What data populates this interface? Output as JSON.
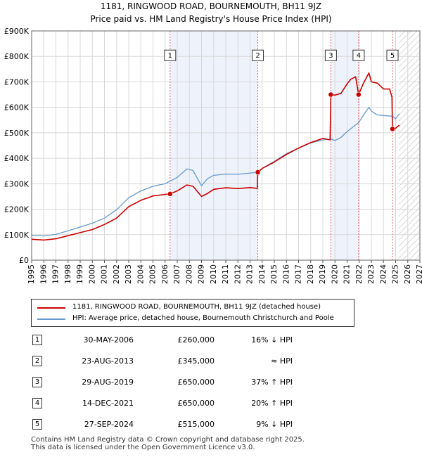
{
  "title_line1": "1181, RINGWOOD ROAD, BOURNEMOUTH, BH11 9JZ",
  "title_line2": "Price paid vs. HM Land Registry's House Price Index (HPI)",
  "colors": {
    "property": "#cc0000",
    "hpi": "#6699cc",
    "shade": "#eef2fb",
    "marker_line": "#e06060"
  },
  "chart_data": {
    "type": "line",
    "x_ticks": [
      1995,
      1996,
      1997,
      1998,
      1999,
      2000,
      2001,
      2002,
      2003,
      2004,
      2005,
      2006,
      2007,
      2008,
      2009,
      2010,
      2011,
      2012,
      2013,
      2014,
      2015,
      2016,
      2017,
      2018,
      2019,
      2020,
      2021,
      2022,
      2023,
      2024,
      2025,
      2026,
      2027
    ],
    "y_ticks": [
      0,
      100000,
      200000,
      300000,
      400000,
      500000,
      600000,
      700000,
      800000,
      900000
    ],
    "y_tick_labels": [
      "£0",
      "£100K",
      "£200K",
      "£300K",
      "£400K",
      "£500K",
      "£600K",
      "£700K",
      "£800K",
      "£900K"
    ],
    "xlim": [
      1995,
      2027
    ],
    "ylim": [
      0,
      900000
    ],
    "shaded_periods": [
      [
        2006.41,
        2013.64
      ],
      [
        2019.66,
        2021.95
      ]
    ],
    "hatch_from": 2025.25,
    "series": [
      {
        "name": "1181, RINGWOOD ROAD, BOURNEMOUTH, BH11 9JZ (detached house)",
        "points": [
          [
            1995.0,
            82000
          ],
          [
            1996.0,
            79000
          ],
          [
            1997.0,
            84000
          ],
          [
            1998.0,
            96000
          ],
          [
            1999.0,
            108000
          ],
          [
            2000.0,
            120000
          ],
          [
            2001.0,
            140000
          ],
          [
            2002.0,
            165000
          ],
          [
            2003.0,
            210000
          ],
          [
            2004.0,
            235000
          ],
          [
            2005.0,
            252000
          ],
          [
            2006.0,
            258000
          ],
          [
            2006.41,
            260000
          ],
          [
            2007.0,
            272000
          ],
          [
            2007.8,
            295000
          ],
          [
            2008.3,
            290000
          ],
          [
            2009.0,
            250000
          ],
          [
            2009.5,
            262000
          ],
          [
            2010.0,
            278000
          ],
          [
            2011.0,
            284000
          ],
          [
            2012.0,
            281000
          ],
          [
            2013.0,
            285000
          ],
          [
            2013.6,
            282000
          ],
          [
            2013.64,
            345000
          ],
          [
            2014.0,
            360000
          ],
          [
            2015.0,
            385000
          ],
          [
            2016.0,
            415000
          ],
          [
            2017.0,
            440000
          ],
          [
            2018.0,
            462000
          ],
          [
            2019.0,
            478000
          ],
          [
            2019.6,
            472000
          ],
          [
            2019.66,
            650000
          ],
          [
            2020.0,
            648000
          ],
          [
            2020.5,
            655000
          ],
          [
            2021.0,
            692000
          ],
          [
            2021.3,
            710000
          ],
          [
            2021.7,
            720000
          ],
          [
            2021.95,
            650000
          ],
          [
            2022.3,
            690000
          ],
          [
            2022.8,
            735000
          ],
          [
            2023.0,
            700000
          ],
          [
            2023.5,
            695000
          ],
          [
            2024.0,
            672000
          ],
          [
            2024.5,
            672000
          ],
          [
            2024.7,
            640000
          ],
          [
            2024.74,
            515000
          ],
          [
            2025.0,
            518000
          ],
          [
            2025.3,
            530000
          ]
        ]
      },
      {
        "name": "HPI: Average price, detached house, Bournemouth Christchurch and Poole",
        "points": [
          [
            1995.0,
            97000
          ],
          [
            1996.0,
            95000
          ],
          [
            1997.0,
            101000
          ],
          [
            1998.0,
            115000
          ],
          [
            1999.0,
            130000
          ],
          [
            2000.0,
            145000
          ],
          [
            2001.0,
            165000
          ],
          [
            2002.0,
            198000
          ],
          [
            2003.0,
            245000
          ],
          [
            2004.0,
            272000
          ],
          [
            2005.0,
            290000
          ],
          [
            2006.0,
            300000
          ],
          [
            2006.41,
            310000
          ],
          [
            2007.0,
            325000
          ],
          [
            2007.8,
            358000
          ],
          [
            2008.3,
            352000
          ],
          [
            2009.0,
            292000
          ],
          [
            2009.5,
            320000
          ],
          [
            2010.0,
            333000
          ],
          [
            2011.0,
            338000
          ],
          [
            2012.0,
            337000
          ],
          [
            2013.0,
            342000
          ],
          [
            2013.64,
            345000
          ],
          [
            2014.0,
            360000
          ],
          [
            2015.0,
            388000
          ],
          [
            2016.0,
            418000
          ],
          [
            2017.0,
            440000
          ],
          [
            2018.0,
            460000
          ],
          [
            2019.0,
            472000
          ],
          [
            2019.66,
            475000
          ],
          [
            2020.0,
            470000
          ],
          [
            2020.5,
            482000
          ],
          [
            2021.0,
            505000
          ],
          [
            2021.95,
            540000
          ],
          [
            2022.5,
            580000
          ],
          [
            2022.8,
            600000
          ],
          [
            2023.0,
            585000
          ],
          [
            2023.5,
            570000
          ],
          [
            2024.0,
            568000
          ],
          [
            2024.74,
            565000
          ],
          [
            2025.0,
            555000
          ],
          [
            2025.3,
            575000
          ]
        ]
      }
    ],
    "sales": [
      {
        "label": "1",
        "x": 2006.41,
        "price": 260000
      },
      {
        "label": "2",
        "x": 2013.64,
        "price": 345000
      },
      {
        "label": "3",
        "x": 2019.66,
        "price": 650000
      },
      {
        "label": "4",
        "x": 2021.95,
        "price": 650000
      },
      {
        "label": "5",
        "x": 2024.74,
        "price": 515000
      }
    ]
  },
  "legend": {
    "property": "1181, RINGWOOD ROAD, BOURNEMOUTH, BH11 9JZ (detached house)",
    "hpi": "HPI: Average price, detached house, Bournemouth Christchurch and Poole"
  },
  "sales_table": [
    {
      "num": "1",
      "date": "30-MAY-2006",
      "price": "£260,000",
      "hpi": "16% ↓ HPI"
    },
    {
      "num": "2",
      "date": "23-AUG-2013",
      "price": "£345,000",
      "hpi": "≈ HPI"
    },
    {
      "num": "3",
      "date": "29-AUG-2019",
      "price": "£650,000",
      "hpi": "37% ↑ HPI"
    },
    {
      "num": "4",
      "date": "14-DEC-2021",
      "price": "£650,000",
      "hpi": "20% ↑ HPI"
    },
    {
      "num": "5",
      "date": "27-SEP-2024",
      "price": "£515,000",
      "hpi": "9% ↓ HPI"
    }
  ],
  "footer_line1": "Contains HM Land Registry data © Crown copyright and database right 2025.",
  "footer_line2": "This data is licensed under the Open Government Licence v3.0."
}
